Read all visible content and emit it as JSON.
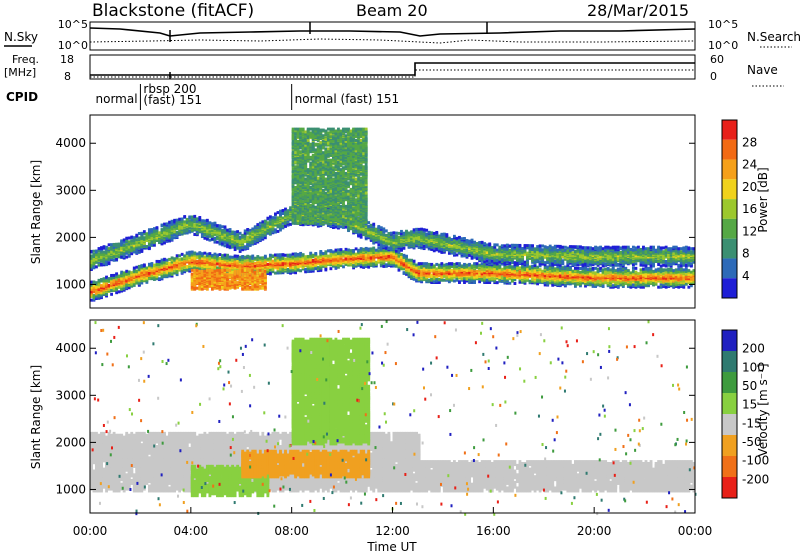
{
  "header": {
    "station": "Blackstone (fitACF)",
    "beam": "Beam 20",
    "date": "28/Mar/2015"
  },
  "top_panels": {
    "nsky_label": "N.Sky",
    "nsky_ticks": [
      "10^5",
      "10^0"
    ],
    "nsearch_label": "N.Search",
    "nsearch_ticks": [
      "10^5",
      "10^0"
    ],
    "freq_label": "Freq.",
    "freq_unit": "[MHz]",
    "freq_ticks": [
      "18",
      "8"
    ],
    "nave_label": "Nave",
    "nave_ticks": [
      "60",
      "0"
    ],
    "cpid_label": "CPID"
  },
  "cpid_segments": [
    {
      "start": 0.1,
      "label": "normal"
    },
    {
      "start": 2.0,
      "label": "rbsp 200",
      "label2": "(fast) 151"
    },
    {
      "start": 8.0,
      "label": "normal (fast) 151"
    }
  ],
  "chart_data": [
    {
      "type": "heatmap",
      "name": "power-panel",
      "ylabel": "Slant Range [km]",
      "yticks": [
        "1000",
        "2000",
        "3000",
        "4000"
      ],
      "ylim": [
        500,
        4600
      ],
      "xlim": [
        0,
        24
      ],
      "colorbar_label": "Power [dB]",
      "colorbar_ticks": [
        "4",
        "8",
        "12",
        "16",
        "20",
        "24",
        "28"
      ],
      "colors": [
        "#1f1fd6",
        "#2d6ab8",
        "#3b8f72",
        "#55a845",
        "#9cc82d",
        "#f0d21c",
        "#f5a01a",
        "#f26a14",
        "#e8201a"
      ],
      "bands": [
        {
          "t": [
            0.0,
            2.0,
            4.0,
            6.0,
            8.0,
            10.0,
            12.0,
            13.0,
            16.0,
            20.0,
            24.0
          ],
          "r": [
            850,
            1200,
            1500,
            1400,
            1450,
            1550,
            1600,
            1250,
            1250,
            1150,
            1150
          ],
          "strength": 0.95
        },
        {
          "t": [
            0.0,
            2.0,
            4.0,
            6.0,
            8.0,
            10.0,
            12.0,
            13.0,
            16.0,
            20.0,
            24.0
          ],
          "r": [
            1500,
            1900,
            2300,
            1900,
            2500,
            2400,
            1900,
            2000,
            1650,
            1600,
            1600
          ],
          "strength": 0.5
        }
      ],
      "patches": [
        {
          "t": [
            4.0,
            7.0
          ],
          "r": [
            900,
            1300
          ],
          "strength": 0.9
        },
        {
          "t": [
            8.0,
            11.0
          ],
          "r": [
            2300,
            4300
          ],
          "strength": 0.45
        }
      ]
    },
    {
      "type": "heatmap",
      "name": "velocity-panel",
      "ylabel": "Slant Range [km]",
      "yticks": [
        "1000",
        "2000",
        "3000",
        "4000"
      ],
      "ylim": [
        500,
        4600
      ],
      "xlim": [
        0,
        24
      ],
      "xticks": [
        "00:00",
        "04:00",
        "08:00",
        "12:00",
        "16:00",
        "20:00",
        "00:00"
      ],
      "xlabel": "Time UT",
      "colorbar_label": "Velocity [m s⁻¹]",
      "colorbar_ticks": [
        "200",
        "100",
        "50",
        "15",
        "-15",
        "-50",
        "-100",
        "-200"
      ],
      "colors": [
        "#2020c0",
        "#2f7a70",
        "#3e9b3e",
        "#88d040",
        "#c8c8c8",
        "#f0a020",
        "#f07018",
        "#e82018"
      ],
      "regions": [
        {
          "t": [
            0.0,
            13.0
          ],
          "r": [
            1000,
            2200
          ],
          "color": "#c8c8c8"
        },
        {
          "t": [
            13.0,
            24.0
          ],
          "r": [
            1000,
            1600
          ],
          "color": "#c8c8c8"
        },
        {
          "t": [
            4.0,
            7.0
          ],
          "r": [
            900,
            1500
          ],
          "color": "#88d040"
        },
        {
          "t": [
            6.0,
            11.0
          ],
          "r": [
            1300,
            1800
          ],
          "color": "#f0a020"
        },
        {
          "t": [
            8.0,
            11.0
          ],
          "r": [
            2000,
            4200
          ],
          "color": "#88d040"
        }
      ]
    }
  ]
}
